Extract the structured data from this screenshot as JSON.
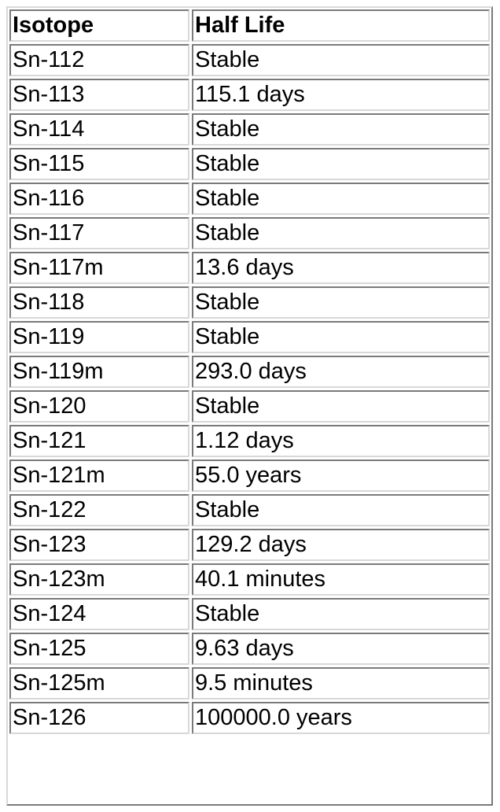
{
  "table": {
    "headers": [
      "Isotope",
      "Half Life"
    ],
    "rows": [
      [
        "Sn-112",
        "Stable"
      ],
      [
        "Sn-113",
        "115.1 days"
      ],
      [
        "Sn-114",
        "Stable"
      ],
      [
        "Sn-115",
        "Stable"
      ],
      [
        "Sn-116",
        "Stable"
      ],
      [
        "Sn-117",
        "Stable"
      ],
      [
        "Sn-117m",
        "13.6 days"
      ],
      [
        "Sn-118",
        "Stable"
      ],
      [
        "Sn-119",
        "Stable"
      ],
      [
        "Sn-119m",
        "293.0 days"
      ],
      [
        "Sn-120",
        "Stable"
      ],
      [
        "Sn-121",
        "1.12 days"
      ],
      [
        "Sn-121m",
        "55.0 years"
      ],
      [
        "Sn-122",
        "Stable"
      ],
      [
        "Sn-123",
        "129.2 days"
      ],
      [
        "Sn-123m",
        "40.1 minutes"
      ],
      [
        "Sn-124",
        "Stable"
      ],
      [
        "Sn-125",
        "9.63 days"
      ],
      [
        "Sn-125m",
        "9.5 minutes"
      ],
      [
        "Sn-126",
        "100000.0 years"
      ]
    ]
  }
}
